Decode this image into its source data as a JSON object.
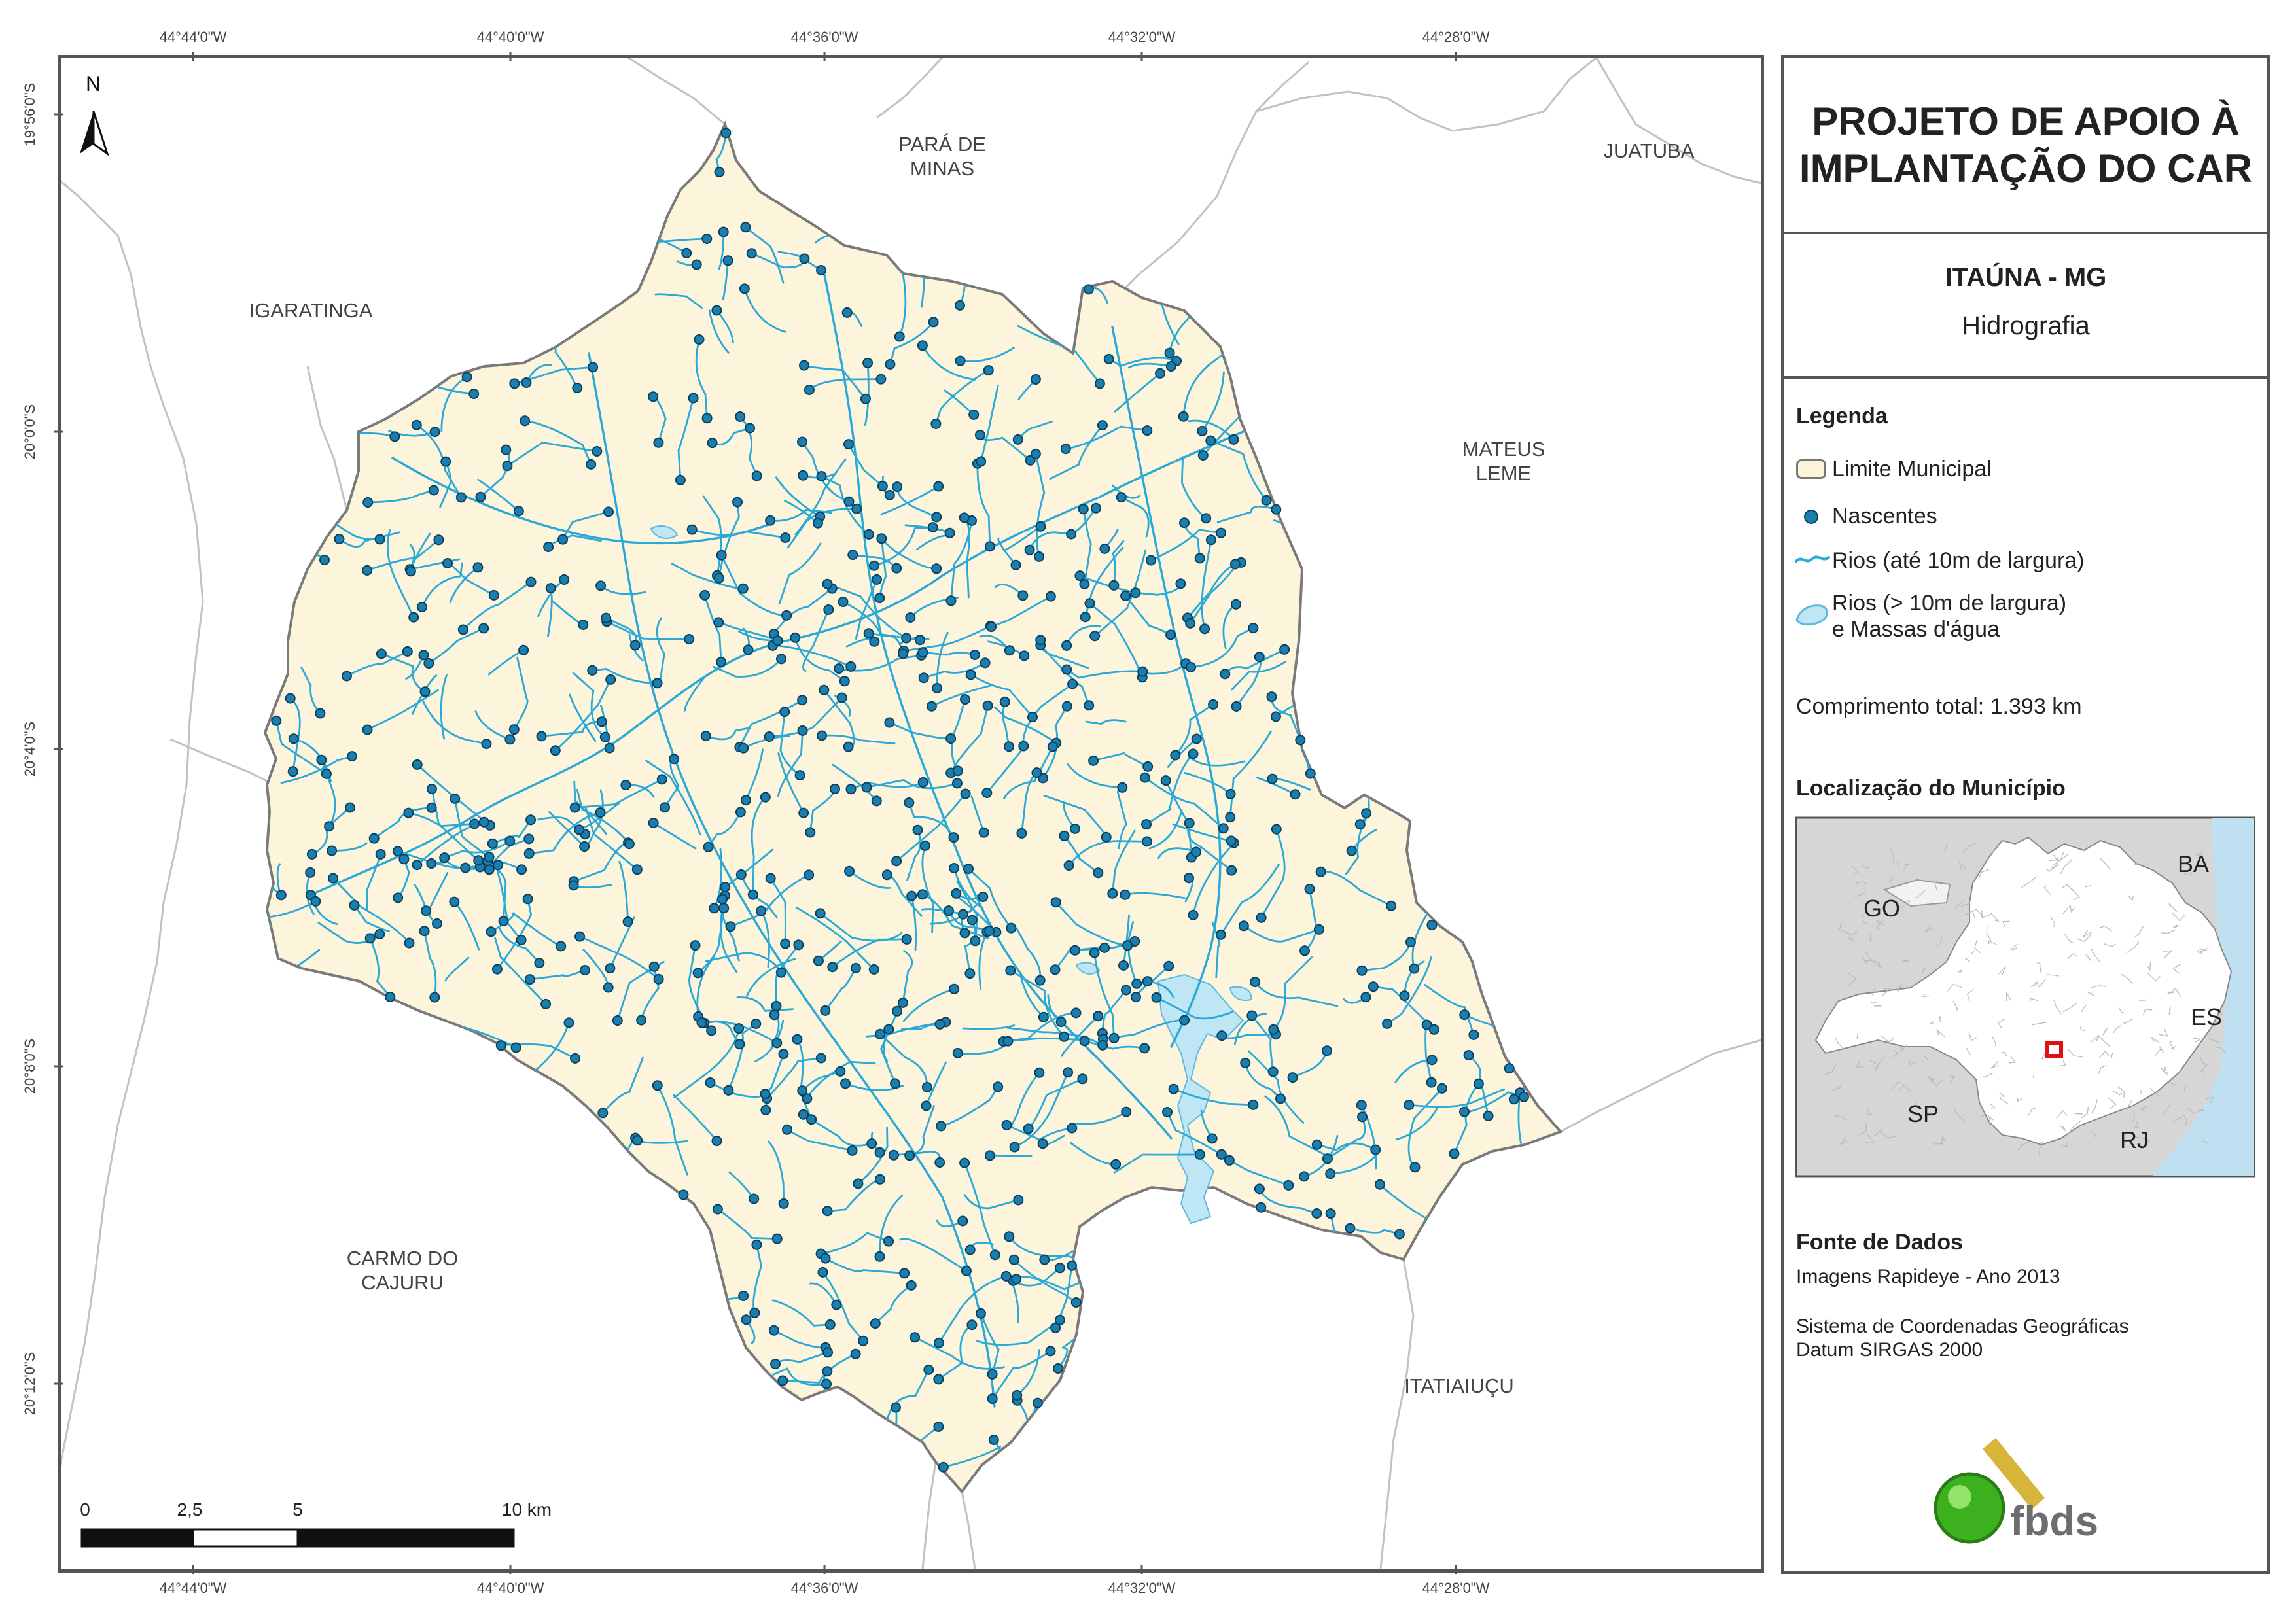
{
  "map": {
    "coords_top": [
      "44°44'0\"W",
      "44°40'0\"W",
      "44°36'0\"W",
      "44°32'0\"W",
      "44°28'0\"W"
    ],
    "coords_bottom": [
      "44°44'0\"W",
      "44°40'0\"W",
      "44°36'0\"W",
      "44°32'0\"W",
      "44°28'0\"W"
    ],
    "coords_left": [
      "19°56'0\"S",
      "20°0'0\"S",
      "20°4'0\"S",
      "20°8'0\"S",
      "20°12'0\"S"
    ],
    "north_label": "N",
    "neighbors": {
      "para_de_minas": "PARÁ DE\nMINAS",
      "juatuba": "JUATUBA",
      "igaratinga": "IGARATINGA",
      "mateus_leme": "MATEUS\nLEME",
      "carmo_do_cajuru": "CARMO DO\nCAJURU",
      "itatiaiucu": "ITATIAIUÇU"
    },
    "scale_labels": [
      "0",
      "2,5",
      "5",
      "10 km"
    ],
    "colors": {
      "municipality_fill": "#fcf5dc",
      "boundary": "#777777",
      "rivers": "#2aa8d8",
      "springs": "#1a7fae",
      "water_bodies": "#bfe6f5",
      "neighbor_lines": "#bbbbbb"
    }
  },
  "panel": {
    "title_line1": "PROJETO DE APOIO À",
    "title_line2": "IMPLANTAÇÃO DO CAR",
    "municipality": "ITAÚNA - MG",
    "theme": "Hidrografia",
    "legend_title": "Legenda",
    "legend_items": [
      {
        "label": "Limite Municipal",
        "icon": "boundary-swatch-icon"
      },
      {
        "label": "Nascentes",
        "icon": "spring-dot-icon"
      },
      {
        "label": "Rios (até 10m de largura)",
        "icon": "river-line-icon"
      },
      {
        "label": "Rios (> 10m de largura)",
        "icon": "water-body-icon"
      }
    ],
    "legend_item4_line2": "e Massas d'água",
    "total_length": "Comprimento total: 1.393 km",
    "location_title": "Localização do Município",
    "location_states": [
      "BA",
      "GO",
      "ES",
      "SP",
      "RJ"
    ],
    "sources_title": "Fonte de Dados",
    "source_1": "Imagens Rapideye - Ano 2013",
    "source_2": "Sistema de Coordenadas Geográficas",
    "source_3": "Datum SIRGAS 2000",
    "logo_text": "fbds",
    "logo_colors": {
      "green": "#3cb01e",
      "gold": "#d7b43a",
      "text": "#6d6d6d"
    }
  }
}
